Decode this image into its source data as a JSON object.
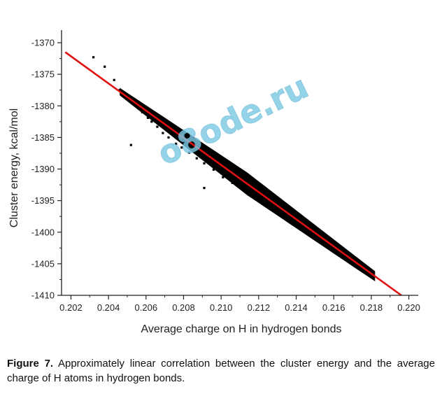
{
  "chart_data": {
    "type": "scatter",
    "xlabel": "Average charge on H in hydrogen bonds",
    "ylabel": "Cluster energy, kcal/mol",
    "xlim": [
      0.2015,
      0.2205
    ],
    "ylim": [
      -1410,
      -1368
    ],
    "x_ticks": [
      "0.202",
      "0.204",
      "0.206",
      "0.208",
      "0.210",
      "0.212",
      "0.214",
      "0.216",
      "0.218",
      "0.220"
    ],
    "x_tick_values": [
      0.202,
      0.204,
      0.206,
      0.208,
      0.21,
      0.212,
      0.214,
      0.216,
      0.218,
      0.22
    ],
    "y_ticks": [
      "-1370",
      "-1375",
      "-1380",
      "-1385",
      "-1390",
      "-1395",
      "-1400",
      "-1405",
      "-1410"
    ],
    "y_tick_values": [
      -1370,
      -1375,
      -1380,
      -1385,
      -1390,
      -1395,
      -1400,
      -1405,
      -1410
    ],
    "series": [
      {
        "type": "scatter",
        "color": "#000000",
        "x": [
          0.2032,
          0.2038,
          0.2043,
          0.2046,
          0.2048,
          0.2051,
          0.2054,
          0.2056,
          0.2058,
          0.2061,
          0.2063,
          0.2066,
          0.2069,
          0.2072,
          0.2076,
          0.2079,
          0.2083,
          0.2087,
          0.2091,
          0.2096,
          0.2101,
          0.2106,
          0.2112,
          0.2118,
          0.2124,
          0.2131,
          0.2138,
          0.2145,
          0.2152,
          0.2159,
          0.2165,
          0.217,
          0.2175,
          0.2179,
          0.2181,
          0.2052,
          0.2091
        ],
        "y": [
          -1372.3,
          -1373.8,
          -1375.9,
          -1377.5,
          -1378.0,
          -1379.0,
          -1379.8,
          -1380.4,
          -1381.0,
          -1381.9,
          -1382.5,
          -1383.3,
          -1384.3,
          -1385.0,
          -1386.0,
          -1386.6,
          -1387.4,
          -1388.3,
          -1389.1,
          -1390.1,
          -1391.3,
          -1392.2,
          -1393.4,
          -1394.7,
          -1395.9,
          -1397.2,
          -1398.6,
          -1400.0,
          -1401.3,
          -1402.6,
          -1403.8,
          -1404.8,
          -1405.7,
          -1406.5,
          -1407.0,
          -1386.2,
          -1393.0
        ]
      },
      {
        "type": "line",
        "name": "",
        "color": "#e01010",
        "x": [
          0.2017,
          0.2196
        ],
        "y": [
          -1371.5,
          -1410.0
        ]
      }
    ],
    "band": {
      "x_start": 0.2046,
      "x_end": 0.2182,
      "half_width_start": 0.6,
      "half_width_mid": 1.8,
      "half_width_end": 0.8
    },
    "title": "",
    "grid": false,
    "watermark": "o8ode.ru"
  },
  "caption": {
    "label": "Figure 7.",
    "text": " Approximately linear correlation between the cluster energy and the average charge of H atoms in hydrogen bonds."
  }
}
